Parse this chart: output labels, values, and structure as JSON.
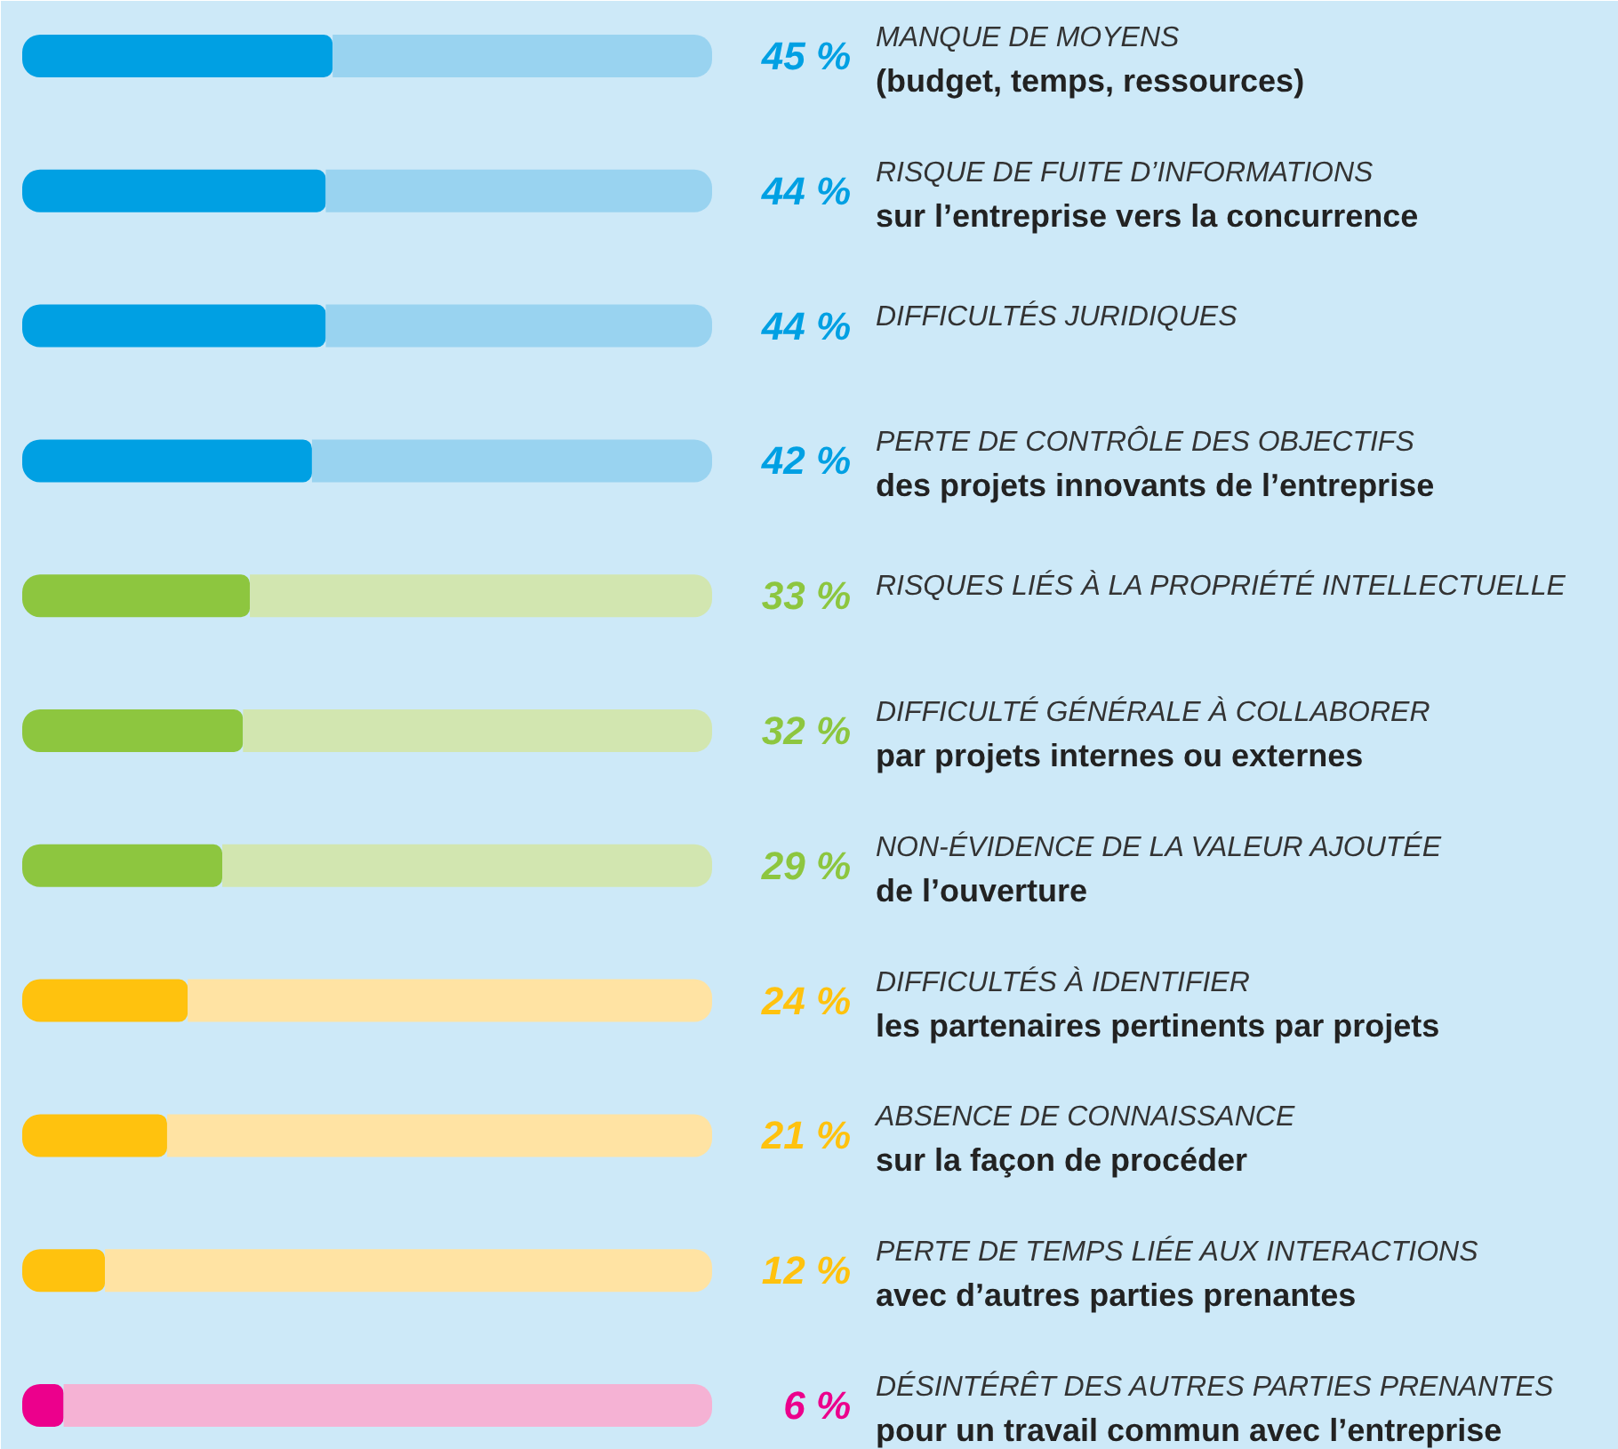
{
  "chart_data": {
    "type": "bar",
    "orientation": "horizontal",
    "tick_labels": false,
    "grid": false,
    "categories": [
      "MANQUE DE MOYENS\n(budget, temps, ressources)",
      "RISQUE DE FUITE D’INFORMATIONS\nsur l’entreprise vers la concurrence",
      "DIFFICULTÉS JURIDIQUES",
      "PERTE DE CONTRÔLE DES OBJECTIFS\ndes projets innovants de l’entreprise",
      "RISQUES LIÉS À LA PROPRIÉTÉ INTELLECTUELLE",
      "DIFFICULTÉ GÉNÉRALE À COLLABORER\npar projets internes ou externes",
      "NON-ÉVIDENCE DE LA VALEUR AJOUTÉE\nde l’ouverture",
      "DIFFICULTÉS À IDENTIFIER\nles partenaires pertinents par projets",
      "ABSENCE DE CONNAISSANCE\nsur la façon de procéder",
      "PERTE DE TEMPS LIÉE AUX INTERACTIONS\navec d’autres parties prenantes",
      "DÉSINTÉRÊT DES AUTRES PARTIES PRENANTES\npour un travail commun avec l’entreprise"
    ],
    "stacked": true,
    "series": [
      {
        "values": [
          45,
          44,
          44,
          42,
          33,
          32,
          29,
          24,
          21,
          12,
          6
        ],
        "colors": [
          "#00a0e3",
          "#00a0e3",
          "#00a0e3",
          "#00a0e3",
          "#8dc63f",
          "#8dc63f",
          "#8dc63f",
          "#ffc20e",
          "#ffc20e",
          "#ffc20e",
          "#ec008c"
        ],
        "value_labels": [
          "45 %",
          "44 %",
          "44 %",
          "42 %",
          "33 %",
          "32 %",
          "29 %",
          "24 %",
          "21 %",
          "12 %",
          "6 %"
        ]
      },
      {
        "values": [
          55,
          56,
          56,
          58,
          67,
          68,
          71,
          76,
          79,
          88,
          94
        ],
        "colors": [
          "#99d3f0",
          "#99d3f0",
          "#99d3f0",
          "#99d3f0",
          "#d2e6b0",
          "#d2e6b0",
          "#d2e6b0",
          "#ffe3a3",
          "#ffe3a3",
          "#ffe3a3",
          "#f5b2d4"
        ]
      }
    ]
  }
}
